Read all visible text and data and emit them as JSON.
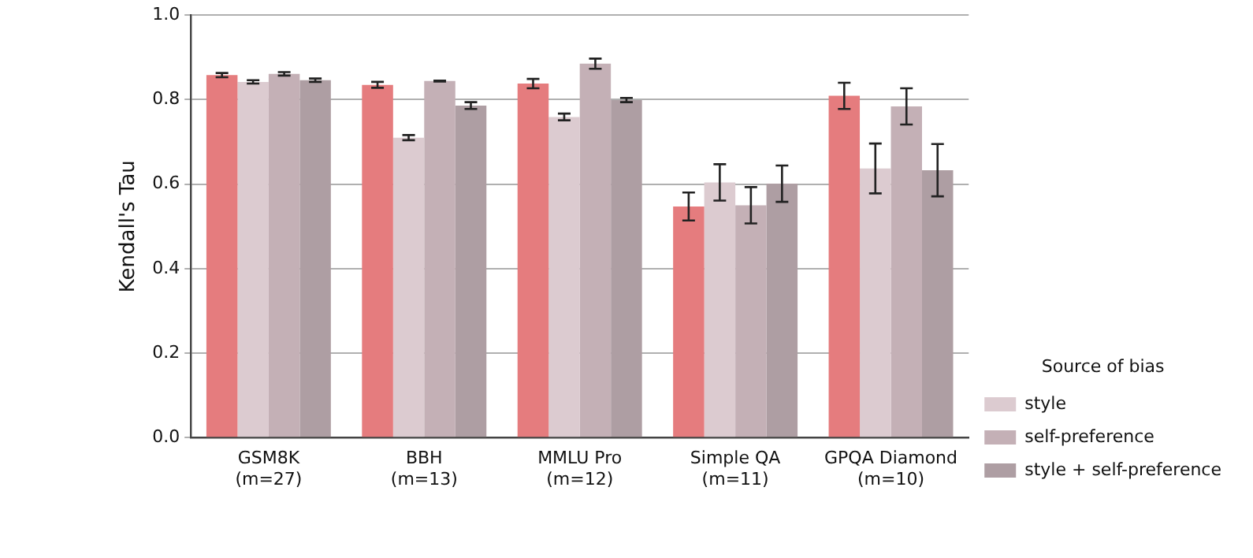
{
  "chart_data": {
    "type": "bar",
    "ylabel": "Kendall's Tau",
    "legend_title": "Source of bias",
    "legend": "right",
    "grid": "y",
    "categories": [
      "GSM8K\n(m=27)",
      "BBH\n(m=13)",
      "MMLU Pro\n(m=12)",
      "Simple QA\n(m=11)",
      "GPQA Diamond\n(m=10)"
    ],
    "ylim": [
      0,
      1
    ],
    "yticks": [
      {
        "value": 0,
        "label": "0.0"
      },
      {
        "value": 0.2,
        "label": "0.2"
      },
      {
        "value": 0.4,
        "label": "0.4"
      },
      {
        "value": 0.6,
        "label": "0.6"
      },
      {
        "value": 0.8,
        "label": "0.8"
      },
      {
        "value": 1,
        "label": "1.0"
      }
    ],
    "series": [
      {
        "color": "#e57c7e",
        "values": [
          0.858,
          0.835,
          0.838,
          0.547,
          0.809
        ],
        "errors": [
          0.005,
          0.007,
          0.011,
          0.033,
          0.031
        ]
      },
      {
        "name": "style",
        "color": "#dccbd0",
        "values": [
          0.842,
          0.71,
          0.759,
          0.604,
          0.637
        ],
        "errors": [
          0.004,
          0.006,
          0.008,
          0.043,
          0.059
        ]
      },
      {
        "name": "self-preference",
        "color": "#c4b0b6",
        "values": [
          0.861,
          0.844,
          0.885,
          0.55,
          0.784
        ],
        "errors": [
          0.004,
          0.001,
          0.012,
          0.043,
          0.043
        ]
      },
      {
        "name": "style + self-preference",
        "color": "#ae9ea3",
        "values": [
          0.846,
          0.786,
          0.799,
          0.601,
          0.633
        ],
        "errors": [
          0.004,
          0.008,
          0.005,
          0.043,
          0.062
        ]
      }
    ]
  }
}
